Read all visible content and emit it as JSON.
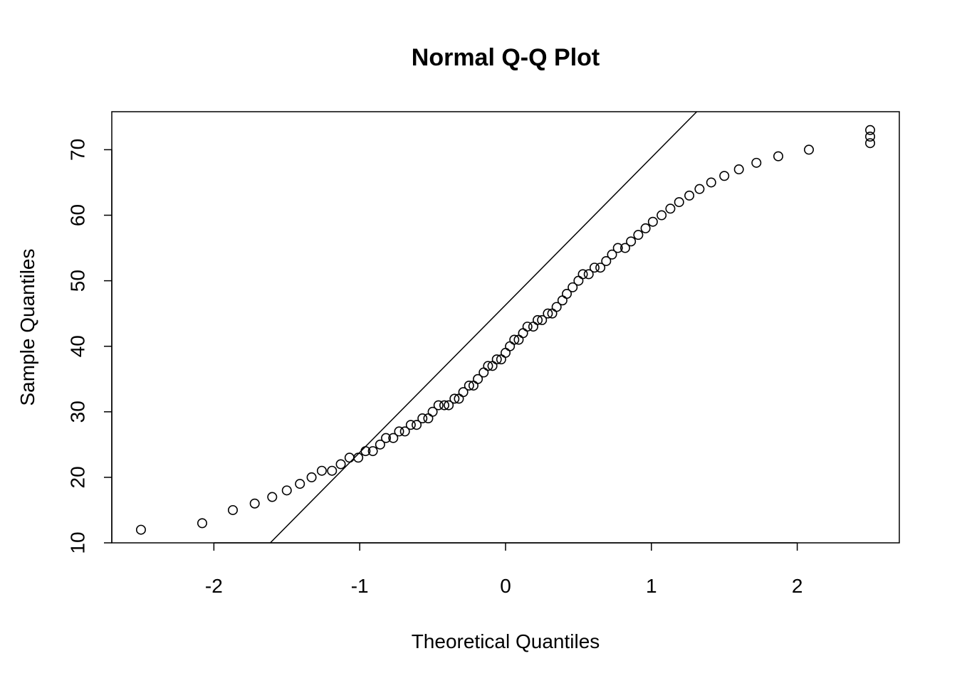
{
  "chart_data": {
    "type": "scatter",
    "title": "Normal Q-Q Plot",
    "xlabel": "Theoretical Quantiles",
    "ylabel": "Sample Quantiles",
    "xlim": [
      -2.7,
      2.7
    ],
    "ylim": [
      10,
      75.8
    ],
    "xticks": [
      -2,
      -1,
      0,
      1,
      2
    ],
    "yticks": [
      10,
      20,
      30,
      40,
      50,
      60,
      70
    ],
    "grid": false,
    "legend": "none",
    "marker": "open-circle",
    "reference_line": {
      "slope": 22.5,
      "intercept": 46.3
    },
    "points": [
      [
        -2.5,
        12
      ],
      [
        -2.08,
        13
      ],
      [
        -1.87,
        15
      ],
      [
        -1.72,
        16
      ],
      [
        -1.6,
        17
      ],
      [
        -1.5,
        18
      ],
      [
        -1.41,
        19
      ],
      [
        -1.33,
        20
      ],
      [
        -1.26,
        21
      ],
      [
        -1.19,
        21
      ],
      [
        -1.13,
        22
      ],
      [
        -1.07,
        23
      ],
      [
        -1.01,
        23
      ],
      [
        -0.96,
        24
      ],
      [
        -0.91,
        24
      ],
      [
        -0.86,
        25
      ],
      [
        -0.82,
        26
      ],
      [
        -0.77,
        26
      ],
      [
        -0.73,
        27
      ],
      [
        -0.69,
        27
      ],
      [
        -0.65,
        28
      ],
      [
        -0.61,
        28
      ],
      [
        -0.57,
        29
      ],
      [
        -0.53,
        29
      ],
      [
        -0.5,
        30
      ],
      [
        -0.46,
        31
      ],
      [
        -0.42,
        31
      ],
      [
        -0.39,
        31
      ],
      [
        -0.35,
        32
      ],
      [
        -0.32,
        32
      ],
      [
        -0.29,
        33
      ],
      [
        -0.25,
        34
      ],
      [
        -0.22,
        34
      ],
      [
        -0.19,
        35
      ],
      [
        -0.15,
        36
      ],
      [
        -0.12,
        37
      ],
      [
        -0.09,
        37
      ],
      [
        -0.06,
        38
      ],
      [
        -0.03,
        38
      ],
      [
        0.0,
        39
      ],
      [
        0.03,
        40
      ],
      [
        0.06,
        41
      ],
      [
        0.09,
        41
      ],
      [
        0.12,
        42
      ],
      [
        0.15,
        43
      ],
      [
        0.19,
        43
      ],
      [
        0.22,
        44
      ],
      [
        0.25,
        44
      ],
      [
        0.29,
        45
      ],
      [
        0.32,
        45
      ],
      [
        0.35,
        46
      ],
      [
        0.39,
        47
      ],
      [
        0.42,
        48
      ],
      [
        0.46,
        49
      ],
      [
        0.5,
        50
      ],
      [
        0.53,
        51
      ],
      [
        0.57,
        51
      ],
      [
        0.61,
        52
      ],
      [
        0.65,
        52
      ],
      [
        0.69,
        53
      ],
      [
        0.73,
        54
      ],
      [
        0.77,
        55
      ],
      [
        0.82,
        55
      ],
      [
        0.86,
        56
      ],
      [
        0.91,
        57
      ],
      [
        0.96,
        58
      ],
      [
        1.01,
        59
      ],
      [
        1.07,
        60
      ],
      [
        1.13,
        61
      ],
      [
        1.19,
        62
      ],
      [
        1.26,
        63
      ],
      [
        1.33,
        64
      ],
      [
        1.41,
        65
      ],
      [
        1.5,
        66
      ],
      [
        1.6,
        67
      ],
      [
        1.72,
        68
      ],
      [
        1.87,
        69
      ],
      [
        2.08,
        70
      ],
      [
        2.5,
        71
      ],
      [
        2.5,
        72
      ],
      [
        2.5,
        73
      ]
    ]
  }
}
